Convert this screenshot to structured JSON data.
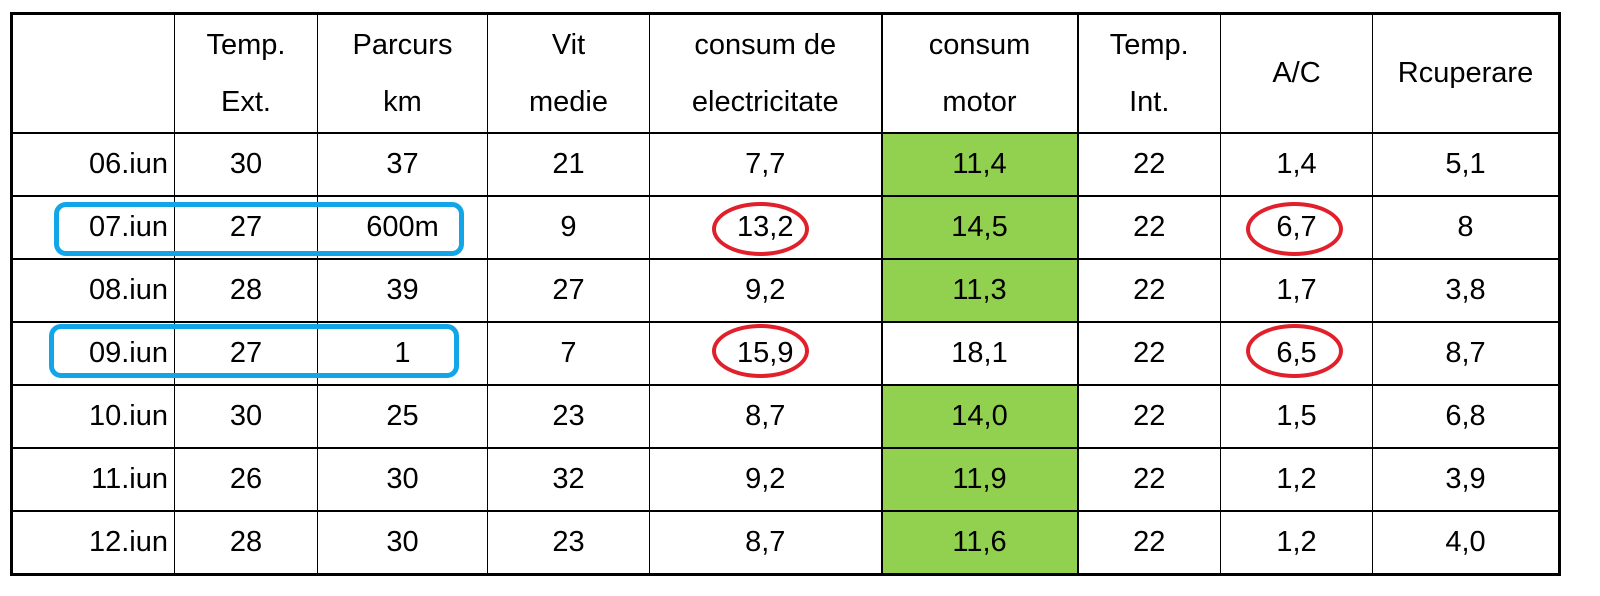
{
  "table": {
    "header": [
      [
        "Temp.",
        "Ext."
      ],
      [
        "Parcurs",
        "km"
      ],
      [
        "Vit",
        "medie"
      ],
      [
        "consum de",
        "electricitate"
      ],
      [
        "consum",
        "motor"
      ],
      [
        "Temp.",
        "Int."
      ],
      [
        "A/C"
      ],
      [
        "Rcuperare"
      ]
    ],
    "rows": [
      [
        "06.iun",
        "30",
        "37",
        "21",
        "7,7",
        "11,4",
        "22",
        "1,4",
        "5,1"
      ],
      [
        "07.iun",
        "27",
        "600m",
        "9",
        "13,2",
        "14,5",
        "22",
        "6,7",
        "8"
      ],
      [
        "08.iun",
        "28",
        "39",
        "27",
        "9,2",
        "11,3",
        "22",
        "1,7",
        "3,8"
      ],
      [
        "09.iun",
        "27",
        "1",
        "7",
        "15,9",
        "18,1",
        "22",
        "6,5",
        "8,7"
      ],
      [
        "10.iun",
        "30",
        "25",
        "23",
        "8,7",
        "14,0",
        "22",
        "1,5",
        "6,8"
      ],
      [
        "11.iun",
        "26",
        "30",
        "32",
        "9,2",
        "11,9",
        "22",
        "1,2",
        "3,9"
      ],
      [
        "12.iun",
        "28",
        "30",
        "23",
        "8,7",
        "11,6",
        "22",
        "1,2",
        "4,0"
      ]
    ]
  }
}
